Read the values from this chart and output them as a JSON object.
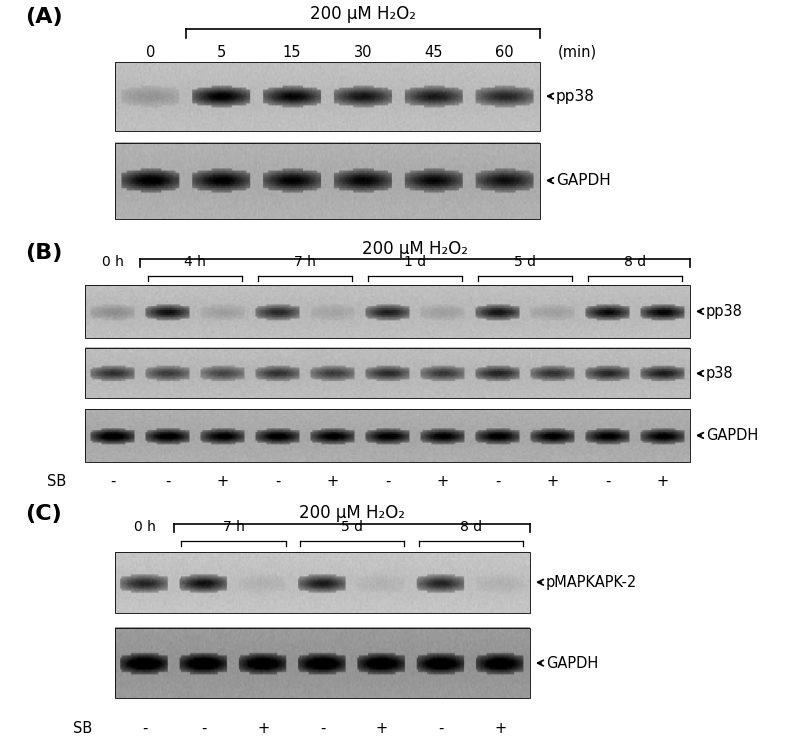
{
  "bg_color": "#ffffff",
  "panel_A": {
    "title": "200 μM H₂O₂",
    "label": "(A)",
    "time_labels": [
      "0",
      "5",
      "15",
      "30",
      "45",
      "60"
    ],
    "time_unit": "(min)",
    "blot_labels": [
      "pp38",
      "GAPDH"
    ],
    "n_lanes": 6,
    "bracket_lanes": [
      1,
      5
    ]
  },
  "panel_B": {
    "title": "200 μM H₂O₂",
    "label": "(B)",
    "group_labels": [
      "0 h",
      "4 h",
      "7 h",
      "1 d",
      "5 d",
      "8 d"
    ],
    "blot_labels": [
      "pp38",
      "p38",
      "GAPDH"
    ],
    "n_lanes": 11,
    "sb_labels": [
      "-",
      "-",
      "+",
      "-",
      "+",
      "-",
      "+",
      "-",
      "+",
      "-",
      "+"
    ]
  },
  "panel_C": {
    "title": "200 μM H₂O₂",
    "label": "(C)",
    "group_labels": [
      "0 h",
      "7 h",
      "5 d",
      "8 d"
    ],
    "blot_labels": [
      "pMAPKAPK-2",
      "GAPDH"
    ],
    "n_lanes": 7,
    "sb_labels": [
      "-",
      "-",
      "+",
      "-",
      "+",
      "-",
      "+"
    ]
  }
}
